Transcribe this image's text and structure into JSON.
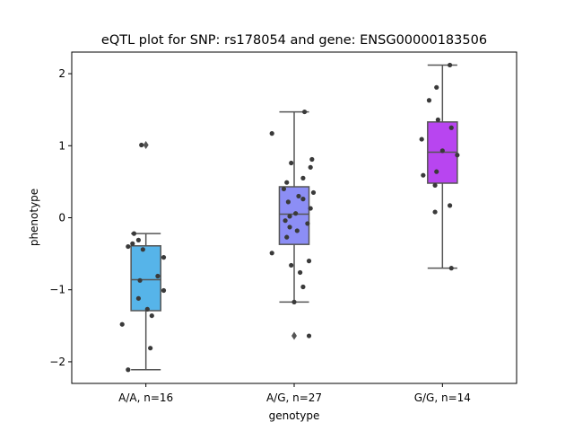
{
  "chart_data": {
    "type": "box",
    "title": "eQTL plot for SNP: rs178054 and gene: ENSG00000183506",
    "xlabel": "genotype",
    "ylabel": "phenotype",
    "categories": [
      "A/A, n=16",
      "A/G, n=27",
      "G/G, n=14"
    ],
    "ylim": [
      -2.3,
      2.3
    ],
    "yticks": [
      -2,
      -1,
      0,
      1,
      2
    ],
    "ytick_labels": [
      "−2",
      "−1",
      "0",
      "1",
      "2"
    ],
    "colors": [
      "#56b4e9",
      "#8c8ef5",
      "#b845f0"
    ],
    "edge_color": "#555555",
    "point_color": "#3a3a3a",
    "boxes": [
      {
        "q1": -1.29,
        "median": -0.86,
        "q3": -0.39,
        "whisker_low": -2.11,
        "whisker_high": -0.22,
        "outliers": [
          1.01
        ]
      },
      {
        "q1": -0.37,
        "median": 0.05,
        "q3": 0.43,
        "whisker_low": -1.17,
        "whisker_high": 1.47,
        "outliers": [
          -1.64
        ]
      },
      {
        "q1": 0.48,
        "median": 0.91,
        "q3": 1.33,
        "whisker_low": -0.7,
        "whisker_high": 2.12,
        "outliers": []
      }
    ],
    "points": [
      [
        {
          "jitter": -0.03,
          "y": 1.01
        },
        {
          "jitter": -0.08,
          "y": -0.22
        },
        {
          "jitter": -0.05,
          "y": -0.31
        },
        {
          "jitter": -0.09,
          "y": -0.36
        },
        {
          "jitter": -0.12,
          "y": -0.4
        },
        {
          "jitter": -0.02,
          "y": -0.44
        },
        {
          "jitter": 0.12,
          "y": -0.55
        },
        {
          "jitter": 0.08,
          "y": -0.81
        },
        {
          "jitter": -0.04,
          "y": -0.87
        },
        {
          "jitter": 0.12,
          "y": -1.01
        },
        {
          "jitter": -0.05,
          "y": -1.12
        },
        {
          "jitter": 0.01,
          "y": -1.27
        },
        {
          "jitter": 0.04,
          "y": -1.36
        },
        {
          "jitter": -0.16,
          "y": -1.48
        },
        {
          "jitter": 0.03,
          "y": -1.81
        },
        {
          "jitter": -0.12,
          "y": -2.11
        }
      ],
      [
        {
          "jitter": 0.07,
          "y": 1.47
        },
        {
          "jitter": -0.15,
          "y": 1.17
        },
        {
          "jitter": 0.12,
          "y": 0.81
        },
        {
          "jitter": -0.02,
          "y": 0.76
        },
        {
          "jitter": 0.11,
          "y": 0.7
        },
        {
          "jitter": 0.06,
          "y": 0.55
        },
        {
          "jitter": -0.05,
          "y": 0.49
        },
        {
          "jitter": -0.07,
          "y": 0.4
        },
        {
          "jitter": 0.13,
          "y": 0.35
        },
        {
          "jitter": 0.03,
          "y": 0.3
        },
        {
          "jitter": 0.06,
          "y": 0.26
        },
        {
          "jitter": -0.04,
          "y": 0.22
        },
        {
          "jitter": 0.11,
          "y": 0.13
        },
        {
          "jitter": 0.01,
          "y": 0.06
        },
        {
          "jitter": -0.03,
          "y": 0.02
        },
        {
          "jitter": -0.06,
          "y": -0.04
        },
        {
          "jitter": 0.09,
          "y": -0.08
        },
        {
          "jitter": -0.03,
          "y": -0.13
        },
        {
          "jitter": 0.02,
          "y": -0.18
        },
        {
          "jitter": -0.05,
          "y": -0.27
        },
        {
          "jitter": -0.15,
          "y": -0.49
        },
        {
          "jitter": 0.1,
          "y": -0.6
        },
        {
          "jitter": -0.02,
          "y": -0.66
        },
        {
          "jitter": 0.04,
          "y": -0.76
        },
        {
          "jitter": 0.06,
          "y": -0.96
        },
        {
          "jitter": 0.0,
          "y": -1.17
        },
        {
          "jitter": 0.1,
          "y": -1.64
        }
      ],
      [
        {
          "jitter": 0.05,
          "y": 2.12
        },
        {
          "jitter": -0.04,
          "y": 1.81
        },
        {
          "jitter": -0.09,
          "y": 1.63
        },
        {
          "jitter": -0.03,
          "y": 1.36
        },
        {
          "jitter": 0.06,
          "y": 1.25
        },
        {
          "jitter": -0.14,
          "y": 1.09
        },
        {
          "jitter": 0.0,
          "y": 0.93
        },
        {
          "jitter": 0.1,
          "y": 0.87
        },
        {
          "jitter": -0.04,
          "y": 0.64
        },
        {
          "jitter": -0.13,
          "y": 0.59
        },
        {
          "jitter": -0.05,
          "y": 0.45
        },
        {
          "jitter": 0.05,
          "y": 0.17
        },
        {
          "jitter": -0.05,
          "y": 0.08
        },
        {
          "jitter": 0.06,
          "y": -0.7
        }
      ]
    ],
    "grid": false,
    "legend": "none"
  }
}
